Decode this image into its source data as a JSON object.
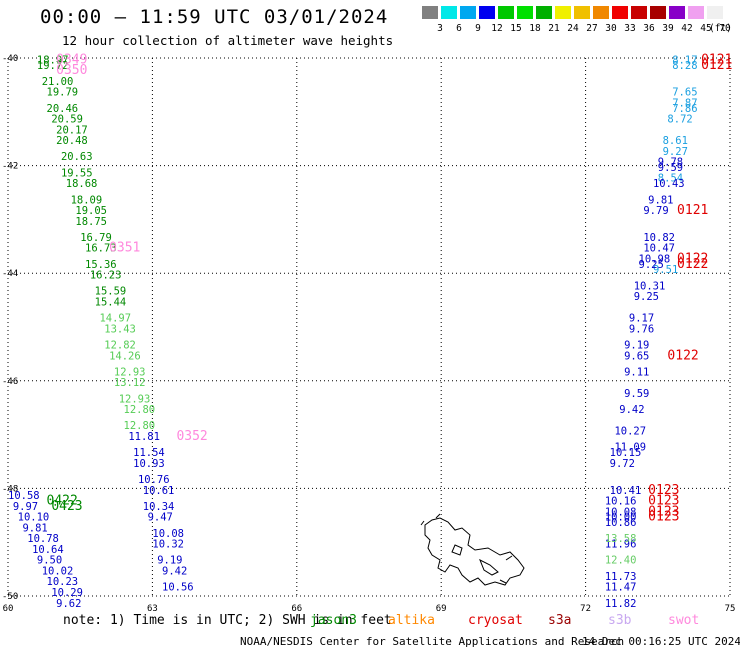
{
  "header": {
    "title": "00:00 — 11:59 UTC 03/01/2024",
    "subtitle": "12 hour collection of altimeter wave heights"
  },
  "legend": {
    "unit": "(ft)",
    "colors": [
      "#808080",
      "#00e8e8",
      "#00a8f0",
      "#0000f0",
      "#00c800",
      "#00e000",
      "#00b000",
      "#f0f000",
      "#f0c000",
      "#f08800",
      "#f00000",
      "#c80000",
      "#a80000",
      "#8800c8",
      "#f0a0f0",
      "#f0f0f0"
    ],
    "labels": [
      "3",
      "6",
      "9",
      "12",
      "15",
      "18",
      "21",
      "24",
      "27",
      "30",
      "33",
      "36",
      "39",
      "42",
      "45",
      "70"
    ]
  },
  "axes": {
    "x_ticks": [
      "60",
      "63",
      "66",
      "69",
      "72",
      "75"
    ],
    "y_ticks": [
      "-40",
      "-42",
      "-44",
      "-46",
      "-48",
      "-50"
    ]
  },
  "chart_data": {
    "type": "scatter",
    "xlabel": "",
    "ylabel": "",
    "xlim": [
      60,
      75
    ],
    "ylim": [
      -50,
      -40
    ],
    "grid": true,
    "series": [
      {
        "color": "#008800",
        "points": [
          {
            "lon": 60.6,
            "lat": -40.1,
            "v": "18.97"
          },
          {
            "lon": 60.6,
            "lat": -40.2,
            "v": "19.72"
          },
          {
            "lon": 60.7,
            "lat": -40.5,
            "v": "21.00"
          },
          {
            "lon": 60.8,
            "lat": -40.7,
            "v": "19.79"
          },
          {
            "lon": 60.8,
            "lat": -41.0,
            "v": "20.46"
          },
          {
            "lon": 60.9,
            "lat": -41.2,
            "v": "20.59"
          },
          {
            "lon": 61.0,
            "lat": -41.4,
            "v": "20.17"
          },
          {
            "lon": 61.0,
            "lat": -41.6,
            "v": "20.48"
          },
          {
            "lon": 61.1,
            "lat": -41.9,
            "v": "20.63"
          },
          {
            "lon": 61.1,
            "lat": -42.2,
            "v": "19.55"
          },
          {
            "lon": 61.2,
            "lat": -42.4,
            "v": "18.68"
          },
          {
            "lon": 61.3,
            "lat": -42.7,
            "v": "18.09"
          },
          {
            "lon": 61.4,
            "lat": -42.9,
            "v": "19.05"
          },
          {
            "lon": 61.4,
            "lat": -43.1,
            "v": "18.75"
          },
          {
            "lon": 61.5,
            "lat": -43.4,
            "v": "16.79"
          },
          {
            "lon": 61.6,
            "lat": -43.6,
            "v": "16.73"
          },
          {
            "lon": 61.6,
            "lat": -43.9,
            "v": "15.36"
          },
          {
            "lon": 61.7,
            "lat": -44.1,
            "v": "16.23"
          },
          {
            "lon": 61.8,
            "lat": -44.4,
            "v": "15.59"
          },
          {
            "lon": 61.8,
            "lat": -44.6,
            "v": "15.44"
          }
        ]
      },
      {
        "color": "#55cc55",
        "points": [
          {
            "lon": 61.9,
            "lat": -44.9,
            "v": "14.97"
          },
          {
            "lon": 62.0,
            "lat": -45.1,
            "v": "13.43"
          },
          {
            "lon": 62.0,
            "lat": -45.4,
            "v": "12.82"
          },
          {
            "lon": 62.1,
            "lat": -45.6,
            "v": "14.26"
          },
          {
            "lon": 62.2,
            "lat": -45.9,
            "v": "12.93"
          },
          {
            "lon": 62.2,
            "lat": -46.1,
            "v": "13.12"
          },
          {
            "lon": 62.3,
            "lat": -46.4,
            "v": "12.93"
          },
          {
            "lon": 62.4,
            "lat": -46.6,
            "v": "12.80"
          },
          {
            "lon": 62.4,
            "lat": -46.9,
            "v": "12.80"
          }
        ]
      },
      {
        "color": "#0000c8",
        "points": [
          {
            "lon": 62.5,
            "lat": -47.1,
            "v": "11.81"
          },
          {
            "lon": 62.6,
            "lat": -47.4,
            "v": "11.54"
          },
          {
            "lon": 62.6,
            "lat": -47.6,
            "v": "10.93"
          },
          {
            "lon": 62.7,
            "lat": -47.9,
            "v": "10.76"
          },
          {
            "lon": 62.8,
            "lat": -48.1,
            "v": "10.61"
          },
          {
            "lon": 62.8,
            "lat": -48.4,
            "v": "10.34"
          },
          {
            "lon": 62.9,
            "lat": -48.6,
            "v": "9.47"
          },
          {
            "lon": 63.0,
            "lat": -48.9,
            "v": "10.08"
          },
          {
            "lon": 63.0,
            "lat": -49.1,
            "v": "10.32"
          },
          {
            "lon": 63.1,
            "lat": -49.4,
            "v": "9.19"
          },
          {
            "lon": 63.2,
            "lat": -49.6,
            "v": "9.42"
          },
          {
            "lon": 63.2,
            "lat": -49.9,
            "v": "10.56"
          },
          {
            "lon": 60.0,
            "lat": -48.2,
            "v": "10.58"
          },
          {
            "lon": 60.1,
            "lat": -48.4,
            "v": "9.97"
          },
          {
            "lon": 60.2,
            "lat": -48.6,
            "v": "10.10"
          },
          {
            "lon": 60.3,
            "lat": -48.8,
            "v": "9.81"
          },
          {
            "lon": 60.4,
            "lat": -49.0,
            "v": "10.78"
          },
          {
            "lon": 60.5,
            "lat": -49.2,
            "v": "10.64"
          },
          {
            "lon": 60.6,
            "lat": -49.4,
            "v": "9.50"
          },
          {
            "lon": 60.7,
            "lat": -49.6,
            "v": "10.02"
          },
          {
            "lon": 60.8,
            "lat": -49.8,
            "v": "10.23"
          },
          {
            "lon": 60.9,
            "lat": -50.0,
            "v": "10.29"
          },
          {
            "lon": 61.0,
            "lat": -50.2,
            "v": "9.62"
          }
        ]
      },
      {
        "color": "#1a9fe0",
        "points": [
          {
            "lon": 73.8,
            "lat": -40.1,
            "v": "8.17"
          },
          {
            "lon": 73.8,
            "lat": -40.2,
            "v": "8.28"
          },
          {
            "lon": 73.8,
            "lat": -40.7,
            "v": "7.65"
          },
          {
            "lon": 73.8,
            "lat": -40.9,
            "v": "7.87"
          },
          {
            "lon": 73.8,
            "lat": -41.0,
            "v": "7.86"
          },
          {
            "lon": 73.7,
            "lat": -41.2,
            "v": "8.72"
          },
          {
            "lon": 73.6,
            "lat": -41.6,
            "v": "8.61"
          },
          {
            "lon": 73.6,
            "lat": -41.8,
            "v": "9.27"
          },
          {
            "lon": 73.5,
            "lat": -42.3,
            "v": "8.54"
          },
          {
            "lon": 73.4,
            "lat": -44.0,
            "v": "9.51"
          }
        ]
      },
      {
        "color": "#0000c8",
        "points": [
          {
            "lon": 73.5,
            "lat": -42.0,
            "v": "9.78"
          },
          {
            "lon": 73.5,
            "lat": -42.1,
            "v": "9.59"
          },
          {
            "lon": 73.4,
            "lat": -42.4,
            "v": "10.43"
          },
          {
            "lon": 73.3,
            "lat": -42.7,
            "v": "9.81"
          },
          {
            "lon": 73.2,
            "lat": -42.9,
            "v": "9.79"
          },
          {
            "lon": 73.2,
            "lat": -43.4,
            "v": "10.82"
          },
          {
            "lon": 73.2,
            "lat": -43.6,
            "v": "10.47"
          },
          {
            "lon": 73.1,
            "lat": -43.8,
            "v": "10.98"
          },
          {
            "lon": 73.1,
            "lat": -43.9,
            "v": "9.25"
          },
          {
            "lon": 73.0,
            "lat": -44.3,
            "v": "10.31"
          },
          {
            "lon": 73.0,
            "lat": -44.5,
            "v": "9.25"
          },
          {
            "lon": 72.9,
            "lat": -44.9,
            "v": "9.17"
          },
          {
            "lon": 72.9,
            "lat": -45.1,
            "v": "9.76"
          },
          {
            "lon": 72.8,
            "lat": -45.4,
            "v": "9.19"
          },
          {
            "lon": 72.8,
            "lat": -45.6,
            "v": "9.65"
          },
          {
            "lon": 72.8,
            "lat": -45.9,
            "v": "9.11"
          },
          {
            "lon": 72.8,
            "lat": -46.3,
            "v": "9.59"
          },
          {
            "lon": 72.7,
            "lat": -46.6,
            "v": "9.42"
          },
          {
            "lon": 72.6,
            "lat": -47.0,
            "v": "10.27"
          },
          {
            "lon": 72.6,
            "lat": -47.3,
            "v": "11.09"
          },
          {
            "lon": 72.5,
            "lat": -47.4,
            "v": "10.15"
          },
          {
            "lon": 72.5,
            "lat": -47.6,
            "v": "9.72"
          },
          {
            "lon": 72.5,
            "lat": -48.1,
            "v": "10.41"
          },
          {
            "lon": 72.4,
            "lat": -48.3,
            "v": "10.16"
          },
          {
            "lon": 72.4,
            "lat": -48.5,
            "v": "10.08"
          },
          {
            "lon": 72.4,
            "lat": -48.6,
            "v": "10.00"
          },
          {
            "lon": 72.4,
            "lat": -48.7,
            "v": "10.86"
          },
          {
            "lon": 72.4,
            "lat": -49.1,
            "v": "11.96"
          },
          {
            "lon": 72.4,
            "lat": -49.7,
            "v": "11.73"
          },
          {
            "lon": 72.4,
            "lat": -49.9,
            "v": "11.47"
          },
          {
            "lon": 72.4,
            "lat": -50.2,
            "v": "11.82"
          }
        ]
      },
      {
        "color": "#66cc66",
        "points": [
          {
            "lon": 72.4,
            "lat": -49.0,
            "v": "13.58"
          },
          {
            "lon": 72.4,
            "lat": -49.4,
            "v": "12.40"
          }
        ]
      }
    ],
    "time_marks": [
      {
        "lon": 61.0,
        "lat": -40.1,
        "t": "0349",
        "color": "#ff88dd"
      },
      {
        "lon": 61.0,
        "lat": -40.3,
        "t": "0350",
        "color": "#ff88dd"
      },
      {
        "lon": 62.1,
        "lat": -43.6,
        "t": "0351",
        "color": "#ff88dd"
      },
      {
        "lon": 63.5,
        "lat": -47.1,
        "t": "0352",
        "color": "#ff88dd"
      },
      {
        "lon": 60.8,
        "lat": -48.3,
        "t": "0422",
        "color": "#008800"
      },
      {
        "lon": 60.9,
        "lat": -48.4,
        "t": "0423",
        "color": "#008800"
      },
      {
        "lon": 74.4,
        "lat": -40.1,
        "t": "0121",
        "color": "#e00000"
      },
      {
        "lon": 74.4,
        "lat": -40.2,
        "t": "0121",
        "color": "#e00000"
      },
      {
        "lon": 73.9,
        "lat": -42.9,
        "t": "0121",
        "color": "#e00000"
      },
      {
        "lon": 73.9,
        "lat": -43.8,
        "t": "0122",
        "color": "#e00000"
      },
      {
        "lon": 73.9,
        "lat": -43.9,
        "t": "0122",
        "color": "#e00000"
      },
      {
        "lon": 73.7,
        "lat": -45.6,
        "t": "0122",
        "color": "#e00000"
      },
      {
        "lon": 73.3,
        "lat": -48.1,
        "t": "0123",
        "color": "#e00000"
      },
      {
        "lon": 73.3,
        "lat": -48.3,
        "t": "0123",
        "color": "#e00000"
      },
      {
        "lon": 73.3,
        "lat": -48.5,
        "t": "0123",
        "color": "#e00000"
      },
      {
        "lon": 73.3,
        "lat": -48.6,
        "t": "0123",
        "color": "#e00000"
      }
    ]
  },
  "footer": {
    "note": "note: 1) Time is in UTC; 2) SWH is in feet",
    "satellites": [
      {
        "name": "jason3",
        "color": "#008800"
      },
      {
        "name": "altika",
        "color": "#ff8800"
      },
      {
        "name": "cryosat",
        "color": "#e00000"
      },
      {
        "name": "s3a",
        "color": "#990000"
      },
      {
        "name": "s3b",
        "color": "#c8a8f0"
      },
      {
        "name": "swot",
        "color": "#ff88dd"
      }
    ],
    "credit": "NOAA/NESDIS Center for Satellite Applications and Research",
    "timestamp": "14 Dec 00:16:25 UTC 2024"
  }
}
